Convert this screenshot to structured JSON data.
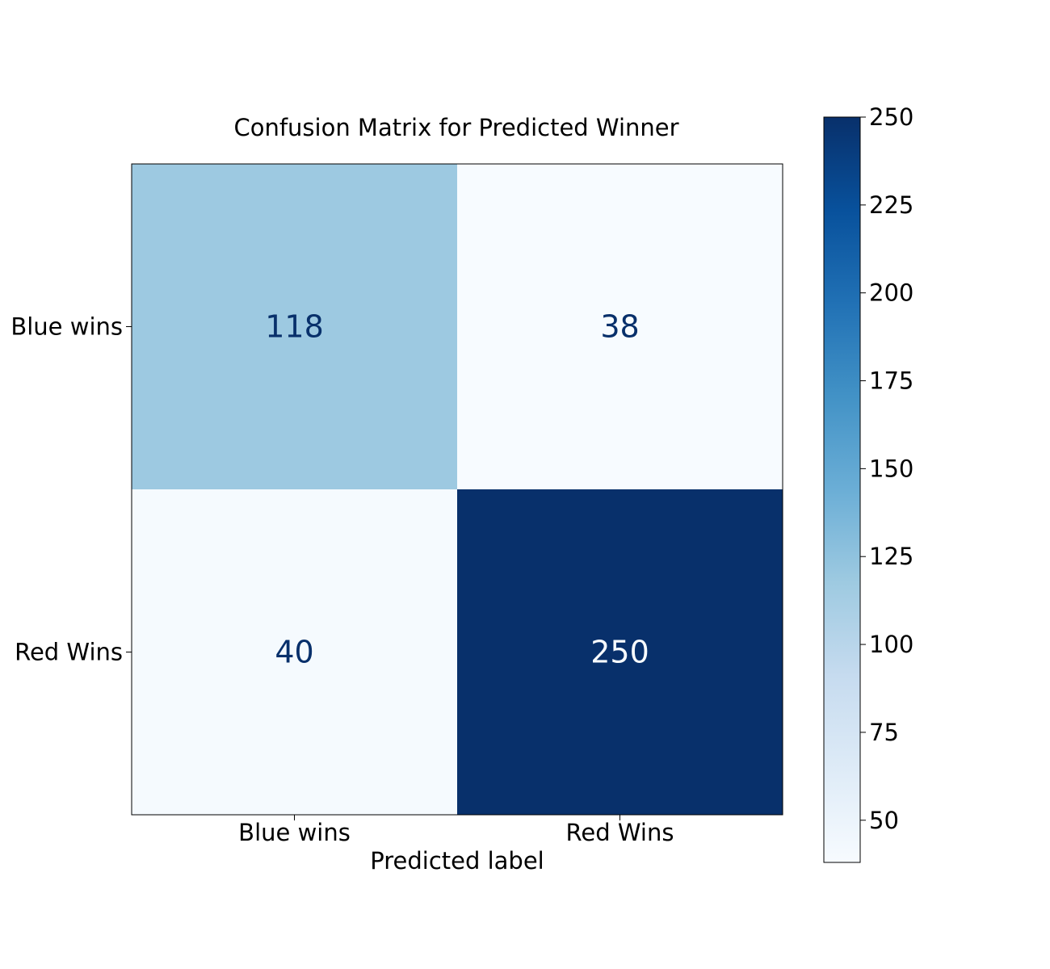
{
  "chart_data": {
    "type": "heatmap",
    "title": "Confusion Matrix for Predicted Winner",
    "xlabel": "Predicted label",
    "ylabel": "",
    "x_categories": [
      "Blue wins",
      "Red Wins"
    ],
    "y_categories": [
      "Blue wins",
      "Red Wins"
    ],
    "values": [
      [
        118,
        38
      ],
      [
        40,
        250
      ]
    ],
    "colormap": "Blues",
    "colorbar": {
      "range": [
        38,
        250
      ],
      "ticks": [
        50,
        75,
        100,
        125,
        150,
        175,
        200,
        225,
        250
      ]
    },
    "grid": false
  }
}
